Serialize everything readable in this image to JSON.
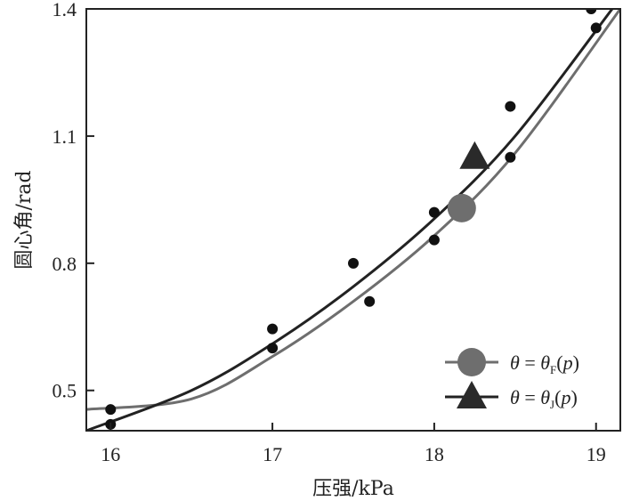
{
  "chart_data": {
    "type": "scatter",
    "xlabel": "压强/kPa",
    "ylabel": "圆心角/rad",
    "xlim": [
      15.85,
      19.15
    ],
    "ylim": [
      0.405,
      1.4
    ],
    "xticks": [
      16,
      17,
      18,
      19
    ],
    "yticks": [
      0.5,
      0.8,
      1.1,
      1.4
    ],
    "xtick_labels": [
      "16",
      "17",
      "18",
      "19"
    ],
    "ytick_labels": [
      "0.5",
      "0.8",
      "1.1",
      "1.4"
    ],
    "grid": false,
    "legend_placement": "bottom-right",
    "points": [
      {
        "x": 16.0,
        "y": 0.455
      },
      {
        "x": 16.0,
        "y": 0.42
      },
      {
        "x": 17.0,
        "y": 0.645
      },
      {
        "x": 17.0,
        "y": 0.6
      },
      {
        "x": 17.5,
        "y": 0.8
      },
      {
        "x": 17.6,
        "y": 0.71
      },
      {
        "x": 18.0,
        "y": 0.92
      },
      {
        "x": 18.0,
        "y": 0.855
      },
      {
        "x": 18.47,
        "y": 1.17
      },
      {
        "x": 18.47,
        "y": 1.05
      },
      {
        "x": 18.97,
        "y": 1.4
      },
      {
        "x": 19.0,
        "y": 1.355
      }
    ],
    "series": [
      {
        "legend": {
          "lhs": "θ",
          "eq": " = ",
          "rhs": "θ",
          "sub": "F",
          "arg_open": "(",
          "arg": "p",
          "arg_close": ")"
        },
        "color": "#6e6e6e",
        "marker": "circle",
        "fit": [
          {
            "x": 15.85,
            "y": 0.455
          },
          {
            "x": 16.5,
            "y": 0.48
          },
          {
            "x": 17.0,
            "y": 0.58
          },
          {
            "x": 17.5,
            "y": 0.71
          },
          {
            "x": 18.0,
            "y": 0.865
          },
          {
            "x": 18.5,
            "y": 1.06
          },
          {
            "x": 19.15,
            "y": 1.4
          }
        ],
        "highlight": {
          "x": 18.17,
          "y": 0.93
        }
      },
      {
        "legend": {
          "lhs": "θ",
          "eq": " = ",
          "rhs": "θ",
          "sub": "J",
          "arg_open": "(",
          "arg": "p",
          "arg_close": ")"
        },
        "color": "#222222",
        "marker": "triangle",
        "fit": [
          {
            "x": 15.85,
            "y": 0.405
          },
          {
            "x": 16.5,
            "y": 0.5
          },
          {
            "x": 17.0,
            "y": 0.61
          },
          {
            "x": 17.5,
            "y": 0.745
          },
          {
            "x": 18.0,
            "y": 0.905
          },
          {
            "x": 18.5,
            "y": 1.1
          },
          {
            "x": 19.1,
            "y": 1.4
          }
        ],
        "highlight": {
          "x": 18.25,
          "y": 1.05
        }
      }
    ]
  }
}
